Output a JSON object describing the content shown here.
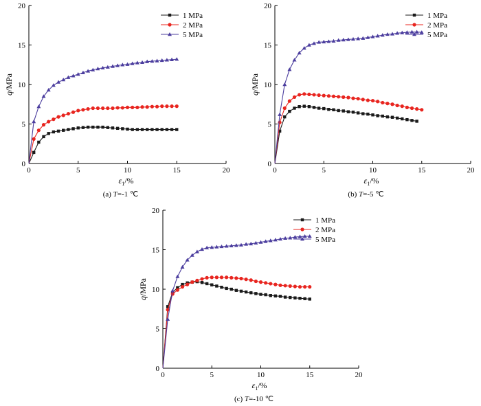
{
  "chart_data": [
    {
      "type": "line",
      "caption": "(a) T=-1 ℃",
      "xlabel": "ε1/%",
      "ylabel": "q/MPa",
      "xlim": [
        0,
        20
      ],
      "ylim": [
        0,
        20
      ],
      "xticks": [
        0,
        5,
        10,
        15,
        20
      ],
      "yticks": [
        0,
        5,
        10,
        15,
        20
      ],
      "legend_position": "top-right",
      "grid": false,
      "series": [
        {
          "name": "1 MPa",
          "marker": "square",
          "color": "#1a1a1a",
          "x": [
            0,
            0.5,
            1,
            1.5,
            2,
            2.5,
            3,
            3.5,
            4,
            4.5,
            5,
            5.5,
            6,
            6.5,
            7,
            7.5,
            8,
            8.5,
            9,
            9.5,
            10,
            10.5,
            11,
            11.5,
            12,
            12.5,
            13,
            13.5,
            14,
            14.5,
            15
          ],
          "y": [
            0,
            1.4,
            2.7,
            3.4,
            3.8,
            4.0,
            4.1,
            4.2,
            4.3,
            4.4,
            4.5,
            4.55,
            4.6,
            4.6,
            4.6,
            4.6,
            4.55,
            4.5,
            4.45,
            4.4,
            4.35,
            4.3,
            4.3,
            4.3,
            4.3,
            4.3,
            4.3,
            4.3,
            4.3,
            4.3,
            4.3
          ]
        },
        {
          "name": "2 MPa",
          "marker": "circle",
          "color": "#e8251f",
          "x": [
            0,
            0.5,
            1,
            1.5,
            2,
            2.5,
            3,
            3.5,
            4,
            4.5,
            5,
            5.5,
            6,
            6.5,
            7,
            7.5,
            8,
            8.5,
            9,
            9.5,
            10,
            10.5,
            11,
            11.5,
            12,
            12.5,
            13,
            13.5,
            14,
            14.5,
            15
          ],
          "y": [
            0,
            3.1,
            4.2,
            4.9,
            5.3,
            5.6,
            5.9,
            6.1,
            6.3,
            6.5,
            6.7,
            6.8,
            6.9,
            7.0,
            7.0,
            7.0,
            7.0,
            7.0,
            7.05,
            7.05,
            7.1,
            7.1,
            7.1,
            7.15,
            7.15,
            7.2,
            7.2,
            7.25,
            7.25,
            7.25,
            7.25
          ]
        },
        {
          "name": "5 MPa",
          "marker": "triangle",
          "color": "#4b3d9e",
          "x": [
            0,
            0.5,
            1,
            1.5,
            2,
            2.5,
            3,
            3.5,
            4,
            4.5,
            5,
            5.5,
            6,
            6.5,
            7,
            7.5,
            8,
            8.5,
            9,
            9.5,
            10,
            10.5,
            11,
            11.5,
            12,
            12.5,
            13,
            13.5,
            14,
            14.5,
            15
          ],
          "y": [
            0,
            5.3,
            7.2,
            8.5,
            9.3,
            9.9,
            10.3,
            10.6,
            10.9,
            11.1,
            11.3,
            11.5,
            11.7,
            11.85,
            12.0,
            12.1,
            12.2,
            12.3,
            12.4,
            12.5,
            12.55,
            12.65,
            12.75,
            12.8,
            12.9,
            12.95,
            13.0,
            13.05,
            13.1,
            13.15,
            13.2
          ]
        }
      ]
    },
    {
      "type": "line",
      "caption": "(b) T=-5 ℃",
      "xlabel": "ε1/%",
      "ylabel": "q/MPa",
      "xlim": [
        0,
        20
      ],
      "ylim": [
        0,
        20
      ],
      "xticks": [
        0,
        5,
        10,
        15,
        20
      ],
      "yticks": [
        0,
        5,
        10,
        15,
        20
      ],
      "legend_position": "top-right",
      "grid": false,
      "series": [
        {
          "name": "1 MPa",
          "marker": "square",
          "color": "#1a1a1a",
          "x": [
            0,
            0.5,
            1,
            1.5,
            2,
            2.5,
            3,
            3.5,
            4,
            4.5,
            5,
            5.5,
            6,
            6.5,
            7,
            7.5,
            8,
            8.5,
            9,
            9.5,
            10,
            10.5,
            11,
            11.5,
            12,
            12.5,
            13,
            13.5,
            14,
            14.5
          ],
          "y": [
            0,
            4.1,
            5.9,
            6.6,
            7.0,
            7.2,
            7.25,
            7.2,
            7.1,
            7.0,
            6.95,
            6.85,
            6.8,
            6.7,
            6.65,
            6.55,
            6.5,
            6.4,
            6.3,
            6.25,
            6.15,
            6.05,
            6.0,
            5.9,
            5.85,
            5.75,
            5.65,
            5.55,
            5.45,
            5.35
          ]
        },
        {
          "name": "2 MPa",
          "marker": "circle",
          "color": "#e8251f",
          "x": [
            0,
            0.5,
            1,
            1.5,
            2,
            2.5,
            3,
            3.5,
            4,
            4.5,
            5,
            5.5,
            6,
            6.5,
            7,
            7.5,
            8,
            8.5,
            9,
            9.5,
            10,
            10.5,
            11,
            11.5,
            12,
            12.5,
            13,
            13.5,
            14,
            14.5,
            15
          ],
          "y": [
            0,
            5.2,
            7.0,
            7.9,
            8.4,
            8.7,
            8.8,
            8.75,
            8.7,
            8.65,
            8.6,
            8.55,
            8.5,
            8.45,
            8.4,
            8.35,
            8.25,
            8.2,
            8.1,
            8.0,
            7.95,
            7.85,
            7.7,
            7.6,
            7.5,
            7.35,
            7.25,
            7.1,
            7.0,
            6.9,
            6.8
          ]
        },
        {
          "name": "5 MPa",
          "marker": "triangle",
          "color": "#4b3d9e",
          "x": [
            0,
            0.5,
            1,
            1.5,
            2,
            2.5,
            3,
            3.5,
            4,
            4.5,
            5,
            5.5,
            6,
            6.5,
            7,
            7.5,
            8,
            8.5,
            9,
            9.5,
            10,
            10.5,
            11,
            11.5,
            12,
            12.5,
            13,
            13.5,
            14,
            14.5,
            15
          ],
          "y": [
            0,
            6.2,
            10.0,
            11.9,
            13.1,
            14.0,
            14.6,
            15.0,
            15.2,
            15.35,
            15.4,
            15.45,
            15.5,
            15.6,
            15.65,
            15.7,
            15.75,
            15.8,
            15.85,
            15.95,
            16.05,
            16.15,
            16.25,
            16.35,
            16.4,
            16.5,
            16.55,
            16.6,
            16.65,
            16.65,
            16.6
          ]
        }
      ]
    },
    {
      "type": "line",
      "caption": "(c) T=-10 ℃",
      "xlabel": "ε1/%",
      "ylabel": "q/MPa",
      "xlim": [
        0,
        20
      ],
      "ylim": [
        0,
        20
      ],
      "xticks": [
        0,
        5,
        10,
        15,
        20
      ],
      "yticks": [
        0,
        5,
        10,
        15,
        20
      ],
      "legend_position": "top-right",
      "grid": false,
      "series": [
        {
          "name": "1 MPa",
          "marker": "square",
          "color": "#1a1a1a",
          "x": [
            0,
            0.5,
            1,
            1.5,
            2,
            2.5,
            3,
            3.5,
            4,
            4.5,
            5,
            5.5,
            6,
            6.5,
            7,
            7.5,
            8,
            8.5,
            9,
            9.5,
            10,
            10.5,
            11,
            11.5,
            12,
            12.5,
            13,
            13.5,
            14,
            14.5,
            15
          ],
          "y": [
            0,
            7.8,
            9.6,
            10.2,
            10.6,
            10.8,
            10.9,
            10.95,
            10.85,
            10.7,
            10.55,
            10.4,
            10.25,
            10.1,
            10.0,
            9.85,
            9.75,
            9.65,
            9.55,
            9.45,
            9.35,
            9.3,
            9.2,
            9.15,
            9.1,
            9.0,
            8.95,
            8.9,
            8.85,
            8.8,
            8.75
          ]
        },
        {
          "name": "2 MPa",
          "marker": "circle",
          "color": "#e8251f",
          "x": [
            0,
            0.5,
            1,
            1.5,
            2,
            2.5,
            3,
            3.5,
            4,
            4.5,
            5,
            5.5,
            6,
            6.5,
            7,
            7.5,
            8,
            8.5,
            9,
            9.5,
            10,
            10.5,
            11,
            11.5,
            12,
            12.5,
            13,
            13.5,
            14,
            14.5,
            15
          ],
          "y": [
            0,
            7.4,
            9.4,
            9.9,
            10.3,
            10.6,
            10.9,
            11.1,
            11.3,
            11.45,
            11.5,
            11.5,
            11.5,
            11.5,
            11.45,
            11.4,
            11.35,
            11.25,
            11.15,
            11.0,
            10.9,
            10.8,
            10.7,
            10.6,
            10.5,
            10.45,
            10.4,
            10.35,
            10.3,
            10.3,
            10.3
          ]
        },
        {
          "name": "5 MPa",
          "marker": "triangle",
          "color": "#4b3d9e",
          "x": [
            0,
            0.5,
            1,
            1.5,
            2,
            2.5,
            3,
            3.5,
            4,
            4.5,
            5,
            5.5,
            6,
            6.5,
            7,
            7.5,
            8,
            8.5,
            9,
            9.5,
            10,
            10.5,
            11,
            11.5,
            12,
            12.5,
            13,
            13.5,
            14,
            14.5,
            15
          ],
          "y": [
            0,
            6.2,
            9.8,
            11.6,
            12.8,
            13.7,
            14.3,
            14.75,
            15.05,
            15.25,
            15.3,
            15.35,
            15.4,
            15.45,
            15.5,
            15.55,
            15.6,
            15.7,
            15.75,
            15.85,
            15.95,
            16.05,
            16.15,
            16.25,
            16.35,
            16.45,
            16.5,
            16.6,
            16.65,
            16.7,
            16.7
          ]
        }
      ]
    }
  ]
}
